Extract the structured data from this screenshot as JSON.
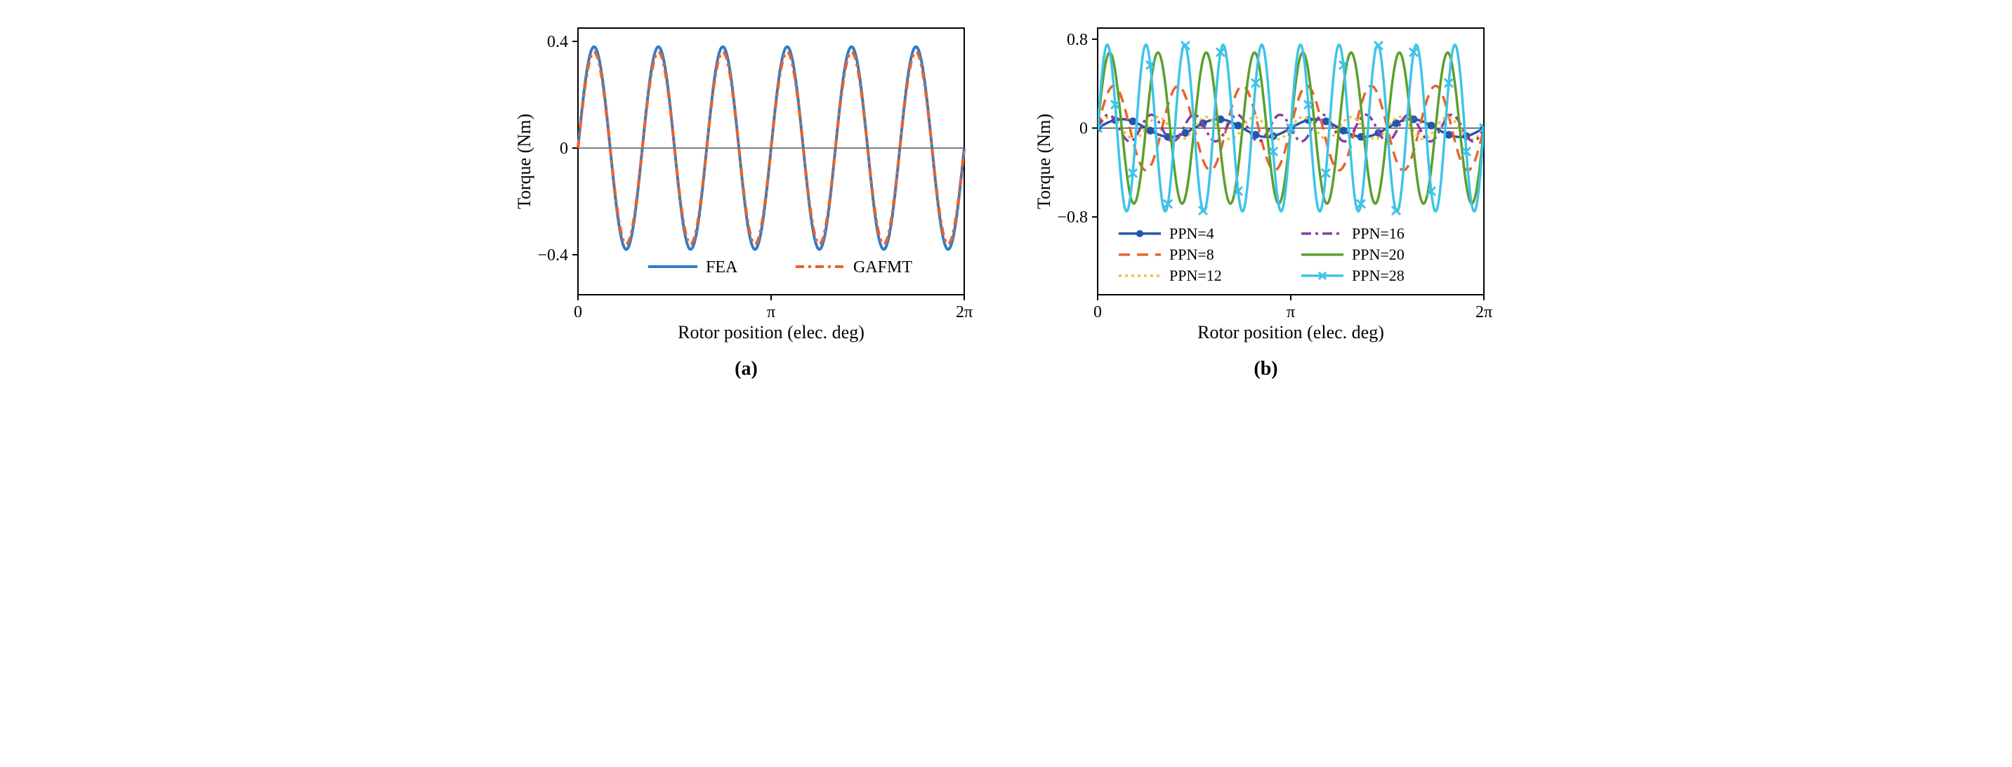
{
  "chart_a": {
    "type": "line",
    "xlabel": "Rotor position (elec. deg)",
    "ylabel": "Torque (Nm)",
    "caption": "(a)",
    "xlim": [
      0,
      6.2832
    ],
    "ylim": [
      -0.55,
      0.45
    ],
    "yticks": [
      -0.4,
      0,
      0.4
    ],
    "ytick_labels": [
      "−0.4",
      "0",
      "0.4"
    ],
    "xticks": [
      0,
      3.1416,
      6.2832
    ],
    "xtick_labels": [
      "0",
      "π",
      "2π"
    ],
    "cycles": 6,
    "amplitude_fea": 0.38,
    "amplitude_gafmt": 0.36,
    "background_color": "#ffffff",
    "axis_color": "#000000",
    "axis_width": 2,
    "label_fontsize": 26,
    "tick_fontsize": 24,
    "series": [
      {
        "name": "FEA",
        "color": "#2d7ec7",
        "width": 4,
        "dash": "none"
      },
      {
        "name": "GAFMT",
        "color": "#e8632c",
        "width": 4,
        "dash": "12,6,4,6"
      }
    ]
  },
  "chart_b": {
    "type": "line",
    "xlabel": "Rotor position (elec. deg)",
    "ylabel": "Torque (Nm)",
    "caption": "(b)",
    "xlim": [
      0,
      6.2832
    ],
    "ylim": [
      -1.5,
      0.9
    ],
    "yticks": [
      -0.8,
      0,
      0.8
    ],
    "ytick_labels": [
      "−0.8",
      "0",
      "0.8"
    ],
    "xticks": [
      0,
      3.1416,
      6.2832
    ],
    "xtick_labels": [
      "0",
      "π",
      "2π"
    ],
    "background_color": "#ffffff",
    "axis_color": "#000000",
    "axis_width": 2,
    "label_fontsize": 26,
    "tick_fontsize": 24,
    "series": [
      {
        "name": "PPN=4",
        "color": "#2255b0",
        "width": 3.5,
        "dash": "none",
        "marker": "circle",
        "amplitude": 0.08,
        "cycles": 4
      },
      {
        "name": "PPN=8",
        "color": "#e8632c",
        "width": 3.5,
        "dash": "16,10",
        "marker": "none",
        "amplitude": 0.38,
        "cycles": 6
      },
      {
        "name": "PPN=12",
        "color": "#f4c430",
        "width": 3.5,
        "dash": "4,5",
        "marker": "none",
        "amplitude": 0.1,
        "cycles": 8
      },
      {
        "name": "PPN=16",
        "color": "#8a3da3",
        "width": 3.5,
        "dash": "14,6,4,6",
        "marker": "none",
        "amplitude": 0.12,
        "cycles": 9
      },
      {
        "name": "PPN=20",
        "color": "#5aa02c",
        "width": 3.5,
        "dash": "none",
        "marker": "none",
        "amplitude": 0.68,
        "cycles": 8
      },
      {
        "name": "PPN=28",
        "color": "#3fc3e8",
        "width": 3.5,
        "dash": "none",
        "marker": "x",
        "amplitude": 0.75,
        "cycles": 10
      }
    ],
    "legend_cols": 2,
    "legend_rows": 3
  }
}
